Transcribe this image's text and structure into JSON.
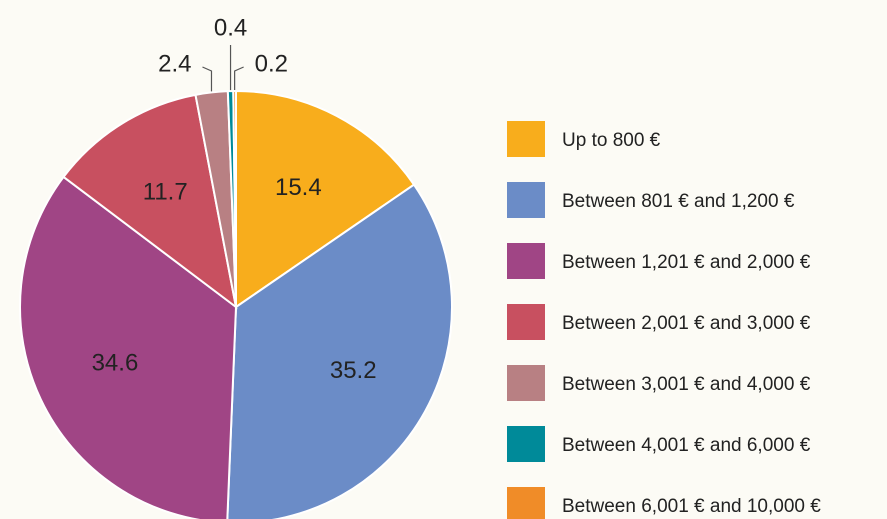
{
  "chart_data": {
    "type": "pie",
    "categories": [
      "Up to 800 €",
      "Between 801 € and 1,200 €",
      "Between 1,201 € and 2,000 €",
      "Between 2,001 € and 3,000 €",
      "Between 3,001 € and 4,000 €",
      "Between 4,001 € and 6,000 €",
      "Between 6,001 € and 10,000 €"
    ],
    "values": [
      15.4,
      35.2,
      34.6,
      11.7,
      2.4,
      0.4,
      0.2
    ],
    "colors": [
      "#f8ad1c",
      "#6b8cc7",
      "#a04585",
      "#c85060",
      "#b88083",
      "#008a99",
      "#f08c28"
    ]
  }
}
